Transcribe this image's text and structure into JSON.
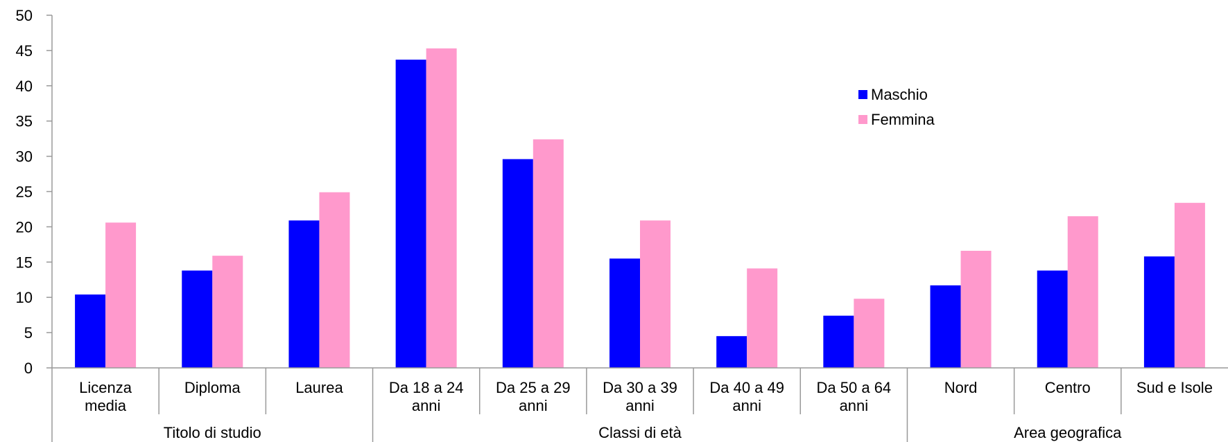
{
  "chart_data": {
    "type": "bar",
    "title": "",
    "xlabel": "",
    "ylabel": "",
    "ylim": [
      0,
      50
    ],
    "yticks": [
      0,
      5,
      10,
      15,
      20,
      25,
      30,
      35,
      40,
      45,
      50
    ],
    "categories": [
      [
        "Licenza",
        "media"
      ],
      [
        "Diploma"
      ],
      [
        "Laurea"
      ],
      [
        "Da 18 a 24",
        "anni"
      ],
      [
        "Da 25 a 29",
        "anni"
      ],
      [
        "Da 30 a 39",
        "anni"
      ],
      [
        "Da 40 a 49",
        "anni"
      ],
      [
        "Da 50 a 64",
        "anni"
      ],
      [
        "Nord"
      ],
      [
        "Centro"
      ],
      [
        "Sud e Isole"
      ]
    ],
    "groups": [
      {
        "label": "Titolo di studio",
        "start": 0,
        "end": 2
      },
      {
        "label": "Classi di età",
        "start": 3,
        "end": 7
      },
      {
        "label": "Area geografica",
        "start": 8,
        "end": 10
      }
    ],
    "series": [
      {
        "name": "Maschio",
        "color": "#0000ff",
        "values": [
          10.4,
          13.8,
          20.9,
          43.7,
          29.6,
          15.5,
          4.5,
          7.4,
          11.7,
          13.8,
          15.8
        ]
      },
      {
        "name": "Femmina",
        "color": "#ff99cc",
        "values": [
          20.6,
          15.9,
          24.9,
          45.3,
          32.4,
          20.9,
          14.1,
          9.8,
          16.6,
          21.5,
          23.4
        ]
      }
    ],
    "legend_position": "top-right",
    "grid": false
  }
}
